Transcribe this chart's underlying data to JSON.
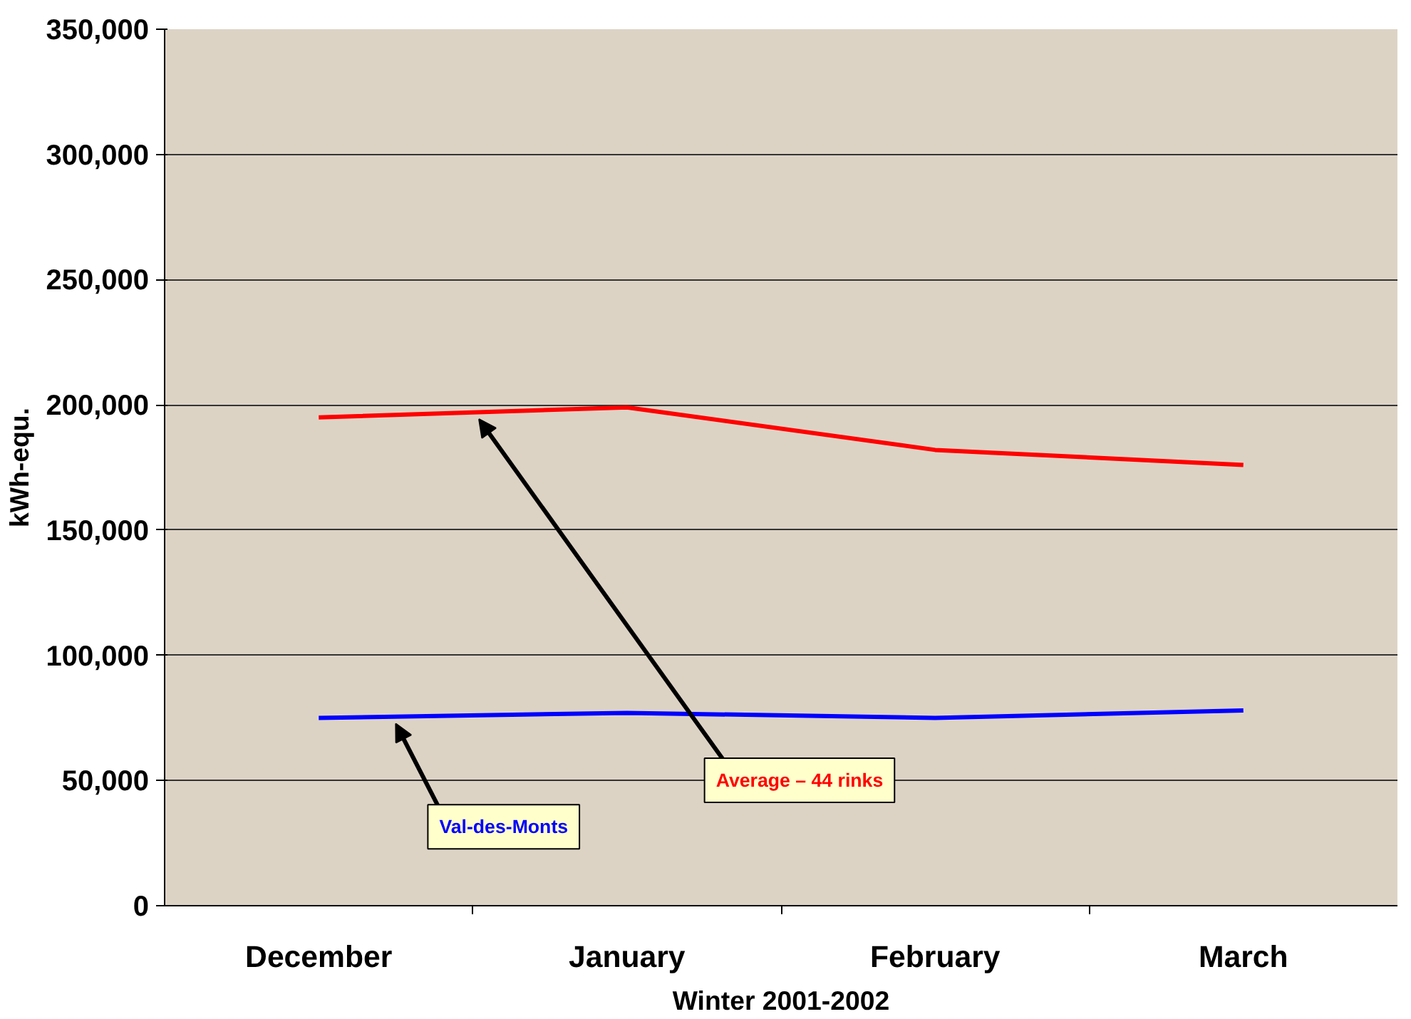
{
  "chart_data": {
    "type": "line",
    "xlabel": "Winter 2001-2002",
    "ylabel": "kWh-equ.",
    "categories": [
      "December",
      "January",
      "February",
      "March"
    ],
    "series": [
      {
        "name": "Average – 44 rinks",
        "color": "#ff0000",
        "values": [
          195000,
          199000,
          182000,
          176000
        ]
      },
      {
        "name": "Val-des-Monts",
        "color": "#0000ff",
        "values": [
          75000,
          77000,
          75000,
          78000
        ]
      }
    ],
    "ylim": [
      0,
      350000
    ],
    "yticks": [
      {
        "value": 0,
        "label": "0"
      },
      {
        "value": 50000,
        "label": "50,000"
      },
      {
        "value": 100000,
        "label": "100,000"
      },
      {
        "value": 150000,
        "label": "150,000"
      },
      {
        "value": 200000,
        "label": "200,000"
      },
      {
        "value": 250000,
        "label": "250,000"
      },
      {
        "value": 300000,
        "label": "300,000"
      },
      {
        "value": 350000,
        "label": "350,000"
      }
    ],
    "grid": "y",
    "legend": false,
    "marker": "none",
    "line_style": "solid"
  }
}
